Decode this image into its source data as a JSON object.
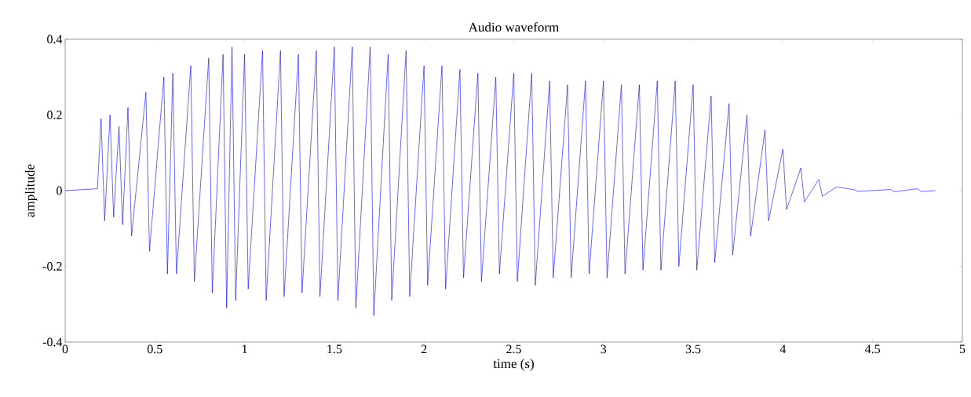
{
  "chart_data": {
    "type": "line",
    "title": "Audio waveform",
    "xlabel": "time (s)",
    "ylabel": "amplitude",
    "xlim": [
      0,
      5
    ],
    "ylim": [
      -0.4,
      0.4
    ],
    "xticks": [
      0,
      0.5,
      1,
      1.5,
      2,
      2.5,
      3,
      3.5,
      4,
      4.5,
      5
    ],
    "yticks": [
      -0.4,
      -0.2,
      0,
      0.2,
      0.4
    ],
    "grid": false,
    "marker": "none",
    "line_style": "solid",
    "series": [
      {
        "color": "#0000ff",
        "x": [
          0,
          0.18,
          0.2,
          0.22,
          0.25,
          0.27,
          0.3,
          0.32,
          0.35,
          0.37,
          0.45,
          0.47,
          0.55,
          0.57,
          0.6,
          0.62,
          0.7,
          0.72,
          0.8,
          0.82,
          0.88,
          0.9,
          0.93,
          0.95,
          1.0,
          1.02,
          1.1,
          1.12,
          1.2,
          1.22,
          1.3,
          1.32,
          1.4,
          1.42,
          1.5,
          1.52,
          1.6,
          1.62,
          1.7,
          1.72,
          1.8,
          1.82,
          1.9,
          1.92,
          2.0,
          2.02,
          2.1,
          2.12,
          2.2,
          2.22,
          2.3,
          2.32,
          2.4,
          2.42,
          2.5,
          2.52,
          2.6,
          2.62,
          2.7,
          2.72,
          2.8,
          2.82,
          2.9,
          2.92,
          3.0,
          3.02,
          3.1,
          3.12,
          3.2,
          3.22,
          3.3,
          3.32,
          3.4,
          3.42,
          3.5,
          3.52,
          3.6,
          3.62,
          3.7,
          3.72,
          3.8,
          3.82,
          3.9,
          3.92,
          4.0,
          4.02,
          4.1,
          4.12,
          4.2,
          4.22,
          4.3,
          4.32,
          4.4,
          4.42,
          4.6,
          4.62,
          4.75,
          4.77,
          4.85
        ],
        "values": [
          0,
          0.005,
          0.19,
          -0.08,
          0.2,
          -0.07,
          0.17,
          -0.09,
          0.22,
          -0.12,
          0.26,
          -0.16,
          0.3,
          -0.22,
          0.31,
          -0.22,
          0.33,
          -0.24,
          0.35,
          -0.27,
          0.36,
          -0.31,
          0.38,
          -0.29,
          0.36,
          -0.26,
          0.37,
          -0.29,
          0.37,
          -0.28,
          0.36,
          -0.27,
          0.37,
          -0.28,
          0.38,
          -0.29,
          0.38,
          -0.31,
          0.38,
          -0.33,
          0.36,
          -0.29,
          0.37,
          -0.28,
          0.33,
          -0.25,
          0.33,
          -0.26,
          0.32,
          -0.23,
          0.31,
          -0.24,
          0.3,
          -0.22,
          0.31,
          -0.24,
          0.31,
          -0.25,
          0.29,
          -0.23,
          0.28,
          -0.23,
          0.29,
          -0.22,
          0.29,
          -0.23,
          0.28,
          -0.22,
          0.28,
          -0.21,
          0.29,
          -0.21,
          0.29,
          -0.2,
          0.28,
          -0.21,
          0.25,
          -0.19,
          0.23,
          -0.17,
          0.2,
          -0.12,
          0.16,
          -0.08,
          0.11,
          -0.05,
          0.06,
          -0.03,
          0.03,
          -0.015,
          0.01,
          null,
          0.002,
          -0.002,
          0.003,
          -0.003,
          0.005,
          -0.002,
          0
        ]
      }
    ]
  }
}
